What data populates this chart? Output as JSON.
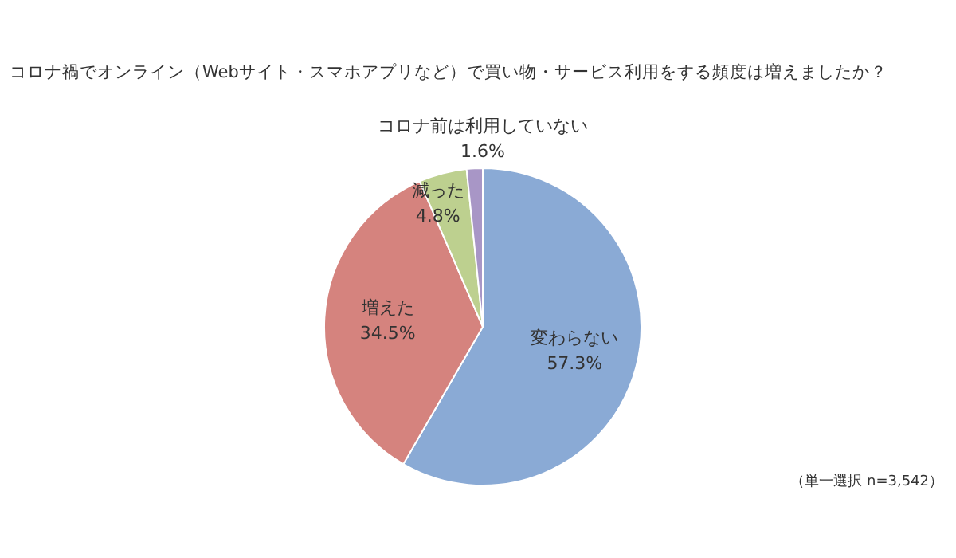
{
  "chart_data": {
    "type": "pie",
    "title": "コロナ禍でオンライン（Webサイト・スマホアプリなど）で買い物・サービス利用をする頻度は増えましたか？",
    "categories": [
      "変わらない",
      "増えた",
      "減った",
      "コロナ前は利用していない"
    ],
    "values": [
      57.3,
      34.5,
      4.8,
      1.6
    ],
    "value_labels": [
      "57.3%",
      "34.5%",
      "4.8%",
      "1.6%"
    ],
    "colors": [
      "#8aaad5",
      "#d5837e",
      "#bdd08f",
      "#a896c6"
    ],
    "legend": false,
    "annotations": [
      "（単一選択 n=3,542）"
    ]
  }
}
